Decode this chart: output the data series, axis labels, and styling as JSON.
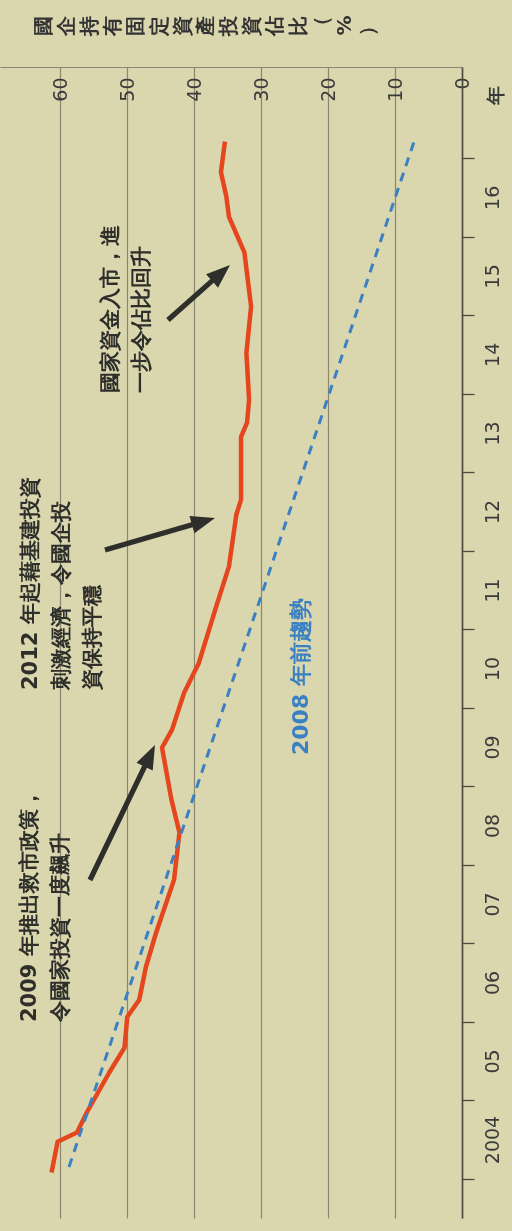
{
  "chart_data": {
    "type": "line",
    "xlabel": "國企持有固定資產投資佔比（%）",
    "ylabel": "年",
    "xlim": [
      69,
      0
    ],
    "xticks": [
      60,
      50,
      40,
      30,
      20,
      10,
      0
    ],
    "ylim": [
      2003,
      2017.66
    ],
    "yticks": [
      {
        "value": 2003.5,
        "label": null
      },
      {
        "value": 2004.5,
        "label": null
      },
      {
        "value": 2005.5,
        "label": null
      },
      {
        "value": 2006.5,
        "label": null
      },
      {
        "value": 2007.5,
        "label": null
      },
      {
        "value": 2008.5,
        "label": null
      },
      {
        "value": 2009.5,
        "label": null
      },
      {
        "value": 2010.5,
        "label": null
      },
      {
        "value": 2011.5,
        "label": null
      },
      {
        "value": 2012.5,
        "label": null
      },
      {
        "value": 2013.5,
        "label": null
      },
      {
        "value": 2014.5,
        "label": null
      },
      {
        "value": 2015.5,
        "label": null
      },
      {
        "value": 2016.5,
        "label": null
      },
      {
        "value": 2004,
        "label": "2004"
      },
      {
        "value": 2005,
        "label": "05"
      },
      {
        "value": 2006,
        "label": "06"
      },
      {
        "value": 2007,
        "label": "07"
      },
      {
        "value": 2008,
        "label": "08"
      },
      {
        "value": 2009,
        "label": "09"
      },
      {
        "value": 2010,
        "label": "10"
      },
      {
        "value": 2011,
        "label": "11"
      },
      {
        "value": 2012,
        "label": "12"
      },
      {
        "value": 2013,
        "label": "13"
      },
      {
        "value": 2014,
        "label": "14"
      },
      {
        "value": 2015,
        "label": "15"
      },
      {
        "value": 2016,
        "label": "16"
      }
    ],
    "grid": "x",
    "series": [
      {
        "color": "#e5461e",
        "line_style": "solid",
        "x": [
          61.3,
          60.4,
          57.5,
          56.0,
          52.7,
          50.4,
          50.0,
          48.2,
          47.2,
          45.7,
          43.0,
          42.2,
          43.4,
          44.8,
          43.3,
          41.5,
          39.3,
          36.7,
          34.8,
          33.7,
          33.0,
          33.0,
          32.1,
          31.8,
          32.2,
          31.5,
          32.5,
          34.8,
          35.2,
          36.0,
          35.5,
          35.4
        ],
        "values": [
          2003.58,
          2003.97,
          2004.09,
          2004.35,
          2004.85,
          2005.17,
          2005.56,
          2005.78,
          2006.2,
          2006.63,
          2007.31,
          2007.91,
          2008.33,
          2008.99,
          2009.22,
          2009.69,
          2010.07,
          2010.79,
          2011.3,
          2011.96,
          2012.15,
          2012.95,
          2013.13,
          2013.42,
          2014.02,
          2014.61,
          2015.3,
          2015.75,
          2016.01,
          2016.32,
          2016.65,
          2016.71
        ]
      },
      {
        "name": "2008 年前趨勢",
        "color": "#3a80c3",
        "line_style": "dashed",
        "x": [
          58.7,
          7.2
        ],
        "values": [
          2003.65,
          2016.7
        ]
      }
    ],
    "annotations": [
      "2009 年推出救市政策，令國家投資一度飆升",
      "2012 年起藉基建投資刺激經濟，令國企投資保持平穩",
      "國家資金入市，進一步令佔比回升"
    ]
  }
}
